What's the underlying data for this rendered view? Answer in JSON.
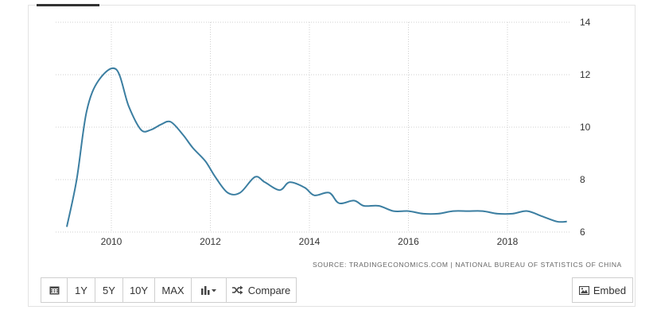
{
  "chart_data": {
    "type": "line",
    "x": [
      2009.1,
      2009.3,
      2009.5,
      2009.75,
      2010.1,
      2010.35,
      2010.6,
      2010.8,
      2011.0,
      2011.2,
      2011.45,
      2011.65,
      2011.9,
      2012.1,
      2012.35,
      2012.6,
      2012.9,
      2013.1,
      2013.4,
      2013.6,
      2013.9,
      2014.1,
      2014.4,
      2014.6,
      2014.9,
      2015.1,
      2015.4,
      2015.7,
      2016.0,
      2016.3,
      2016.6,
      2016.9,
      2017.2,
      2017.5,
      2017.8,
      2018.1,
      2018.4,
      2018.7,
      2019.0,
      2019.2
    ],
    "values": [
      6.2,
      8.0,
      10.6,
      11.8,
      12.2,
      10.8,
      9.9,
      9.9,
      10.1,
      10.2,
      9.7,
      9.2,
      8.7,
      8.1,
      7.5,
      7.5,
      8.1,
      7.9,
      7.6,
      7.9,
      7.7,
      7.4,
      7.5,
      7.1,
      7.2,
      7.0,
      7.0,
      6.8,
      6.8,
      6.7,
      6.7,
      6.8,
      6.8,
      6.8,
      6.7,
      6.7,
      6.8,
      6.6,
      6.4,
      6.4
    ],
    "xlim": [
      2009.0,
      2019.3
    ],
    "ylim": [
      6,
      14
    ],
    "x_ticks": [
      "2010",
      "2012",
      "2014",
      "2016",
      "2018"
    ],
    "y_ticks": [
      "6",
      "8",
      "10",
      "12",
      "14"
    ],
    "grid": true,
    "line_color": "#3b7ea1",
    "source": "SOURCE: TRADINGECONOMICS.COM  |  NATIONAL BUREAU OF STATISTICS OF CHINA"
  },
  "toolbar": {
    "calendar_icon": "calendar-icon",
    "range_1y": "1Y",
    "range_5y": "5Y",
    "range_10y": "10Y",
    "range_max": "MAX",
    "chart_type_icon": "bar-chart-icon",
    "compare_icon": "shuffle-icon",
    "compare_label": "Compare",
    "embed_icon": "image-icon",
    "embed_label": "Embed"
  }
}
